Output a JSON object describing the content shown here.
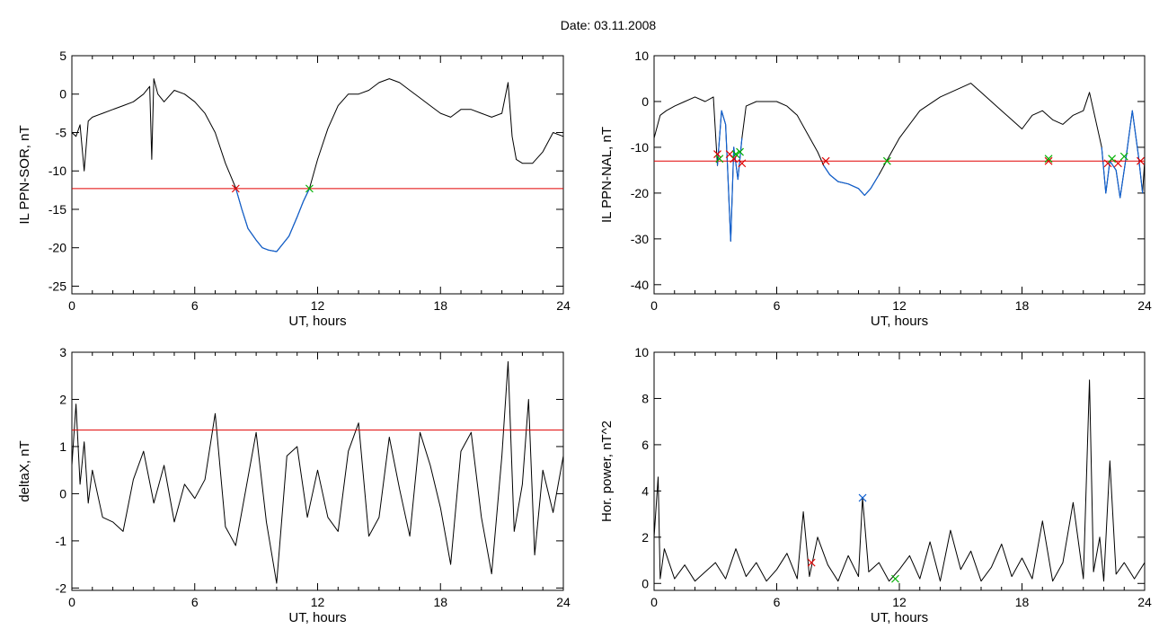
{
  "figure": {
    "title": "Date:  03.11.2008"
  },
  "colors": {
    "trace": "#000000",
    "highlight": "#1060d0",
    "threshold": "#e00000",
    "marker_red": "#e00000",
    "marker_green": "#00b000",
    "marker_blue": "#1060d0"
  },
  "chart_data": [
    {
      "type": "line",
      "xlabel": "UT, hours",
      "ylabel": "IL PPN-SOR, nT",
      "xlim": [
        0,
        24
      ],
      "ylim": [
        -26,
        5
      ],
      "xticks": [
        0,
        6,
        12,
        18,
        24
      ],
      "yticks": [
        5,
        0,
        -5,
        -10,
        -15,
        -20,
        -25
      ],
      "threshold": -12.3,
      "series": [
        {
          "x": [
            0,
            0.2,
            0.4,
            0.6,
            0.8,
            1,
            1.5,
            2,
            2.5,
            3,
            3.5,
            3.8,
            3.9,
            4,
            4.2,
            4.5,
            5,
            5.5,
            6,
            6.5,
            7,
            7.5,
            8,
            8.3,
            8.6,
            9,
            9.3,
            9.6,
            10,
            10.3,
            10.6,
            11,
            11.3,
            11.6,
            12,
            12.5,
            13,
            13.5,
            14,
            14.5,
            15,
            15.5,
            16,
            16.5,
            17,
            17.5,
            18,
            18.5,
            19,
            19.5,
            20,
            20.5,
            21,
            21.3,
            21.5,
            21.7,
            22,
            22.5,
            23,
            23.5,
            24
          ],
          "y": [
            -5,
            -5.5,
            -4,
            -10,
            -3.5,
            -3,
            -2.5,
            -2,
            -1.5,
            -1,
            0,
            1,
            -8.5,
            2,
            0,
            -1,
            0.5,
            0,
            -1,
            -2.5,
            -5,
            -9,
            -12.2,
            -15,
            -17.5,
            -19,
            -20,
            -20.3,
            -20.5,
            -19.5,
            -18.5,
            -16,
            -14,
            -12.3,
            -8.5,
            -4.5,
            -1.5,
            0,
            0,
            0.5,
            1.5,
            2,
            1.5,
            0.5,
            -0.5,
            -1.5,
            -2.5,
            -3,
            -2,
            -2,
            -2.5,
            -3,
            -2.5,
            1.5,
            -5.5,
            -8.5,
            -9,
            -9,
            -7.5,
            -5,
            -5.5
          ]
        }
      ],
      "highlight_range": [
        8.0,
        11.6
      ],
      "markers": [
        {
          "x": 8.0,
          "y": -12.3,
          "color": "red"
        },
        {
          "x": 11.6,
          "y": -12.3,
          "color": "green"
        }
      ]
    },
    {
      "type": "line",
      "xlabel": "UT, hours",
      "ylabel": "IL PPN-NAL, nT",
      "xlim": [
        0,
        24
      ],
      "ylim": [
        -42,
        10
      ],
      "xticks": [
        0,
        6,
        12,
        18,
        24
      ],
      "yticks": [
        10,
        0,
        -10,
        -20,
        -30,
        -40
      ],
      "threshold": -13,
      "series": [
        {
          "x": [
            0,
            0.3,
            0.6,
            1,
            1.5,
            2,
            2.5,
            2.9,
            3.1,
            3.3,
            3.5,
            3.6,
            3.75,
            3.9,
            4.1,
            4.3,
            4.5,
            5,
            5.5,
            6,
            6.5,
            7,
            7.5,
            8,
            8.3,
            8.6,
            9,
            9.5,
            10,
            10.3,
            10.6,
            11,
            11.5,
            12,
            13,
            14,
            15,
            15.5,
            16,
            16.5,
            17,
            17.5,
            18,
            18.5,
            19,
            19.5,
            20,
            20.5,
            21,
            21.3,
            21.6,
            21.9,
            22.1,
            22.3,
            22.6,
            22.8,
            23.1,
            23.4,
            23.7,
            23.9,
            24
          ],
          "y": [
            -8,
            -3,
            -2,
            -1,
            0,
            1,
            0,
            1,
            -14,
            -2,
            -5,
            -15,
            -30.5,
            -10,
            -17,
            -8,
            -1,
            0,
            0,
            0,
            -1,
            -3,
            -7,
            -11,
            -14,
            -16,
            -17.5,
            -18,
            -19,
            -20.5,
            -19,
            -16,
            -12,
            -8,
            -2,
            1,
            3,
            4,
            2,
            0,
            -2,
            -4,
            -6,
            -3,
            -2,
            -4,
            -5,
            -3,
            -2,
            2,
            -4,
            -10,
            -20,
            -13,
            -15,
            -21,
            -12,
            -2,
            -12,
            -20,
            -13
          ]
        }
      ],
      "highlight_segments": [
        [
          3.1,
          4.4
        ],
        [
          8.3,
          11.4
        ],
        [
          21.8,
          23.9
        ]
      ],
      "markers": [
        {
          "x": 3.1,
          "y": -11.5,
          "color": "red"
        },
        {
          "x": 3.2,
          "y": -12.5,
          "color": "green"
        },
        {
          "x": 3.7,
          "y": -11.5,
          "color": "red"
        },
        {
          "x": 3.9,
          "y": -12.5,
          "color": "red"
        },
        {
          "x": 4.0,
          "y": -11.5,
          "color": "green"
        },
        {
          "x": 4.3,
          "y": -13.5,
          "color": "red"
        },
        {
          "x": 4.2,
          "y": -11,
          "color": "green"
        },
        {
          "x": 8.4,
          "y": -13,
          "color": "red"
        },
        {
          "x": 11.4,
          "y": -13,
          "color": "green"
        },
        {
          "x": 19.3,
          "y": -13,
          "color": "red"
        },
        {
          "x": 19.3,
          "y": -12.5,
          "color": "green"
        },
        {
          "x": 22.2,
          "y": -13.5,
          "color": "red"
        },
        {
          "x": 22.4,
          "y": -12.5,
          "color": "green"
        },
        {
          "x": 22.7,
          "y": -13.5,
          "color": "red"
        },
        {
          "x": 23.0,
          "y": -12,
          "color": "green"
        },
        {
          "x": 23.8,
          "y": -13,
          "color": "red"
        }
      ]
    },
    {
      "type": "line",
      "xlabel": "UT, hours",
      "ylabel": "deltaX, nT",
      "xlim": [
        0,
        24
      ],
      "ylim": [
        -2.05,
        3
      ],
      "xticks": [
        0,
        6,
        12,
        18,
        24
      ],
      "yticks": [
        3,
        2,
        1,
        0,
        -1,
        -2
      ],
      "threshold": 1.35,
      "series": [
        {
          "x": [
            0,
            0.2,
            0.4,
            0.6,
            0.8,
            1,
            1.5,
            2,
            2.5,
            3,
            3.5,
            4,
            4.5,
            5,
            5.5,
            6,
            6.5,
            7,
            7.5,
            8,
            8.5,
            9,
            9.5,
            10,
            10.5,
            11,
            11.5,
            12,
            12.5,
            13,
            13.5,
            14,
            14.5,
            15,
            15.5,
            16,
            16.5,
            17,
            17.5,
            18,
            18.5,
            19,
            19.5,
            20,
            20.5,
            21,
            21.3,
            21.6,
            22,
            22.3,
            22.6,
            23,
            23.5,
            24
          ],
          "y": [
            0.6,
            1.9,
            0.2,
            1.1,
            -0.2,
            0.5,
            -0.5,
            -0.6,
            -0.8,
            0.3,
            0.9,
            -0.2,
            0.6,
            -0.6,
            0.2,
            -0.1,
            0.3,
            1.7,
            -0.7,
            -1.1,
            0.1,
            1.3,
            -0.6,
            -1.9,
            0.8,
            1.0,
            -0.5,
            0.5,
            -0.5,
            -0.8,
            0.9,
            1.5,
            -0.9,
            -0.5,
            1.2,
            0.1,
            -0.9,
            1.3,
            0.6,
            -0.3,
            -1.5,
            0.9,
            1.3,
            -0.5,
            -1.7,
            0.8,
            2.8,
            -0.8,
            0.2,
            2.0,
            -1.3,
            0.5,
            -0.4,
            0.8
          ]
        }
      ]
    },
    {
      "type": "line",
      "xlabel": "UT, hours",
      "ylabel": "Hor. power, nT^2",
      "xlim": [
        0,
        24
      ],
      "ylim": [
        -0.3,
        10
      ],
      "xticks": [
        0,
        6,
        12,
        18,
        24
      ],
      "yticks": [
        10,
        8,
        6,
        4,
        2,
        0
      ],
      "series": [
        {
          "x": [
            0,
            0.2,
            0.3,
            0.5,
            1,
            1.5,
            2,
            2.5,
            3,
            3.5,
            4,
            4.5,
            5,
            5.5,
            6,
            6.5,
            7,
            7.3,
            7.6,
            8,
            8.5,
            9,
            9.5,
            10,
            10.2,
            10.5,
            11,
            11.5,
            12,
            12.5,
            13,
            13.5,
            14,
            14.5,
            15,
            15.5,
            16,
            16.5,
            17,
            17.5,
            18,
            18.5,
            19,
            19.5,
            20,
            20.5,
            21,
            21.3,
            21.5,
            21.8,
            22,
            22.3,
            22.6,
            23,
            23.5,
            24
          ],
          "y": [
            2,
            4.6,
            0.2,
            1.5,
            0.2,
            0.8,
            0.1,
            0.5,
            0.9,
            0.2,
            1.5,
            0.3,
            0.9,
            0.1,
            0.6,
            1.3,
            0.2,
            3.1,
            0.3,
            2.0,
            0.8,
            0.1,
            1.2,
            0.3,
            3.7,
            0.5,
            0.9,
            0.1,
            0.6,
            1.2,
            0.2,
            1.8,
            0.1,
            2.3,
            0.6,
            1.4,
            0.1,
            0.7,
            1.7,
            0.3,
            1.1,
            0.2,
            2.7,
            0.1,
            0.9,
            3.5,
            0.2,
            8.8,
            0.5,
            2.0,
            0.1,
            5.3,
            0.4,
            0.9,
            0.2,
            0.9
          ]
        }
      ],
      "markers": [
        {
          "x": 10.2,
          "y": 3.7,
          "color": "blue"
        },
        {
          "x": 7.7,
          "y": 0.9,
          "color": "red"
        },
        {
          "x": 11.8,
          "y": 0.2,
          "color": "green"
        }
      ]
    }
  ]
}
